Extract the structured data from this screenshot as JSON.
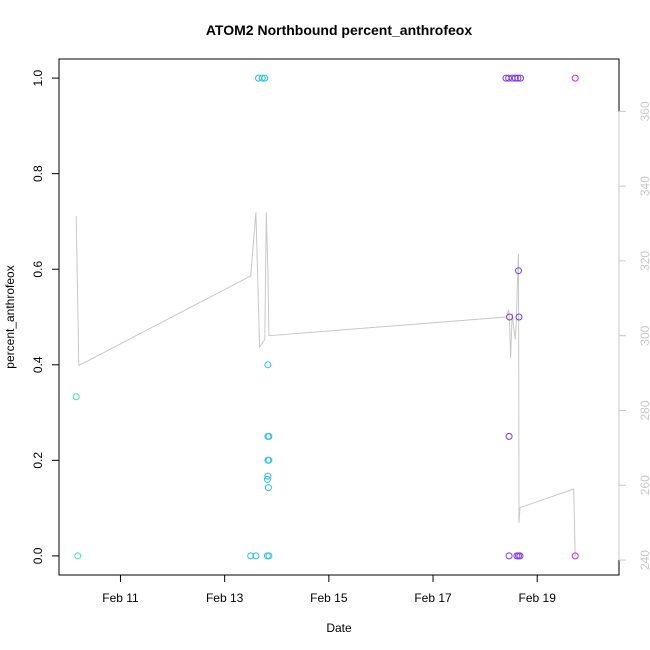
{
  "chart_data": {
    "type": "scatter",
    "title": "ATOM2 Northbound percent_anthrofeox",
    "xlabel": "Date",
    "ylabel": "percent_anthrofeox",
    "x_unit": "days in February (day of month)",
    "xlim": [
      9.82,
      20.57
    ],
    "ylim": [
      -0.04,
      1.04
    ],
    "y2lim": [
      236,
      374
    ],
    "x_ticks": [
      {
        "value": 11,
        "label": "Feb 11"
      },
      {
        "value": 13,
        "label": "Feb 13"
      },
      {
        "value": 15,
        "label": "Feb 15"
      },
      {
        "value": 17,
        "label": "Feb 17"
      },
      {
        "value": 19,
        "label": "Feb 19"
      }
    ],
    "y_ticks": [
      {
        "value": 0.0,
        "label": "0.0"
      },
      {
        "value": 0.2,
        "label": "0.2"
      },
      {
        "value": 0.4,
        "label": "0.4"
      },
      {
        "value": 0.6,
        "label": "0.6"
      },
      {
        "value": 0.8,
        "label": "0.8"
      },
      {
        "value": 1.0,
        "label": "1.0"
      }
    ],
    "y2_ticks": [
      {
        "value": 240,
        "label": "240"
      },
      {
        "value": 260,
        "label": "260"
      },
      {
        "value": 280,
        "label": "280"
      },
      {
        "value": 300,
        "label": "300"
      },
      {
        "value": 320,
        "label": "320"
      },
      {
        "value": 340,
        "label": "340"
      },
      {
        "value": 360,
        "label": "360"
      }
    ],
    "grid": false,
    "legend": "none",
    "line_color": "#c8c8c8",
    "points": [
      {
        "x": 10.15,
        "y": 0.333,
        "color": "#33e8b3"
      },
      {
        "x": 10.18,
        "y": 0.0,
        "color": "#33e8b3"
      },
      {
        "x": 13.5,
        "y": 0.0,
        "color": "#29c0ec"
      },
      {
        "x": 13.6,
        "y": 0.0,
        "color": "#29c0ec"
      },
      {
        "x": 13.65,
        "y": 1.0,
        "color": "#29c0ec"
      },
      {
        "x": 13.72,
        "y": 1.0,
        "color": "#29c0ec"
      },
      {
        "x": 13.77,
        "y": 1.0,
        "color": "#29c0ec"
      },
      {
        "x": 13.83,
        "y": 0.4,
        "color": "#29c0ec"
      },
      {
        "x": 13.83,
        "y": 0.25,
        "color": "#29c0ec"
      },
      {
        "x": 13.85,
        "y": 0.25,
        "color": "#29c0ec"
      },
      {
        "x": 13.83,
        "y": 0.2,
        "color": "#29c0ec"
      },
      {
        "x": 13.85,
        "y": 0.2,
        "color": "#29c0ec"
      },
      {
        "x": 13.83,
        "y": 0.167,
        "color": "#29c0ec"
      },
      {
        "x": 13.82,
        "y": 0.16,
        "color": "#29c0ec"
      },
      {
        "x": 13.84,
        "y": 0.143,
        "color": "#29c0ec"
      },
      {
        "x": 13.82,
        "y": 0.0,
        "color": "#29c0ec"
      },
      {
        "x": 13.85,
        "y": 0.0,
        "color": "#29c0ec"
      },
      {
        "x": 18.4,
        "y": 1.0,
        "color": "#7a3af0"
      },
      {
        "x": 18.45,
        "y": 1.0,
        "color": "#7a3af0"
      },
      {
        "x": 18.52,
        "y": 1.0,
        "color": "#7a3af0"
      },
      {
        "x": 18.58,
        "y": 1.0,
        "color": "#7a3af0"
      },
      {
        "x": 18.63,
        "y": 1.0,
        "color": "#7a3af0"
      },
      {
        "x": 18.68,
        "y": 1.0,
        "color": "#7a3af0"
      },
      {
        "x": 18.47,
        "y": 0.5,
        "color": "#7a3af0"
      },
      {
        "x": 18.65,
        "y": 0.5,
        "color": "#7a3af0"
      },
      {
        "x": 18.64,
        "y": 0.597,
        "color": "#7a3af0"
      },
      {
        "x": 18.46,
        "y": 0.25,
        "color": "#7a3af0"
      },
      {
        "x": 18.46,
        "y": 0.0,
        "color": "#7a3af0"
      },
      {
        "x": 18.61,
        "y": 0.0,
        "color": "#7a3af0"
      },
      {
        "x": 18.64,
        "y": 0.0,
        "color": "#7a3af0"
      },
      {
        "x": 18.67,
        "y": 0.0,
        "color": "#7a3af0"
      },
      {
        "x": 19.73,
        "y": 1.0,
        "color": "#d520e8"
      },
      {
        "x": 19.73,
        "y": 0.0,
        "color": "#d520e8"
      }
    ],
    "line": [
      {
        "x": 10.15,
        "y2": 332
      },
      {
        "x": 10.2,
        "y2": 292
      },
      {
        "x": 13.5,
        "y2": 316
      },
      {
        "x": 13.6,
        "y2": 333
      },
      {
        "x": 13.67,
        "y2": 297
      },
      {
        "x": 13.77,
        "y2": 299
      },
      {
        "x": 13.8,
        "y2": 333
      },
      {
        "x": 13.83,
        "y2": 317
      },
      {
        "x": 13.85,
        "y2": 300
      },
      {
        "x": 18.4,
        "y2": 305
      },
      {
        "x": 18.45,
        "y2": 307
      },
      {
        "x": 18.47,
        "y2": 303
      },
      {
        "x": 18.49,
        "y2": 294
      },
      {
        "x": 18.52,
        "y2": 306
      },
      {
        "x": 18.55,
        "y2": 302
      },
      {
        "x": 18.58,
        "y2": 299
      },
      {
        "x": 18.6,
        "y2": 304
      },
      {
        "x": 18.62,
        "y2": 314
      },
      {
        "x": 18.64,
        "y2": 322
      },
      {
        "x": 18.65,
        "y2": 250
      },
      {
        "x": 18.67,
        "y2": 254
      },
      {
        "x": 19.7,
        "y2": 259
      },
      {
        "x": 19.73,
        "y2": 241
      }
    ]
  }
}
